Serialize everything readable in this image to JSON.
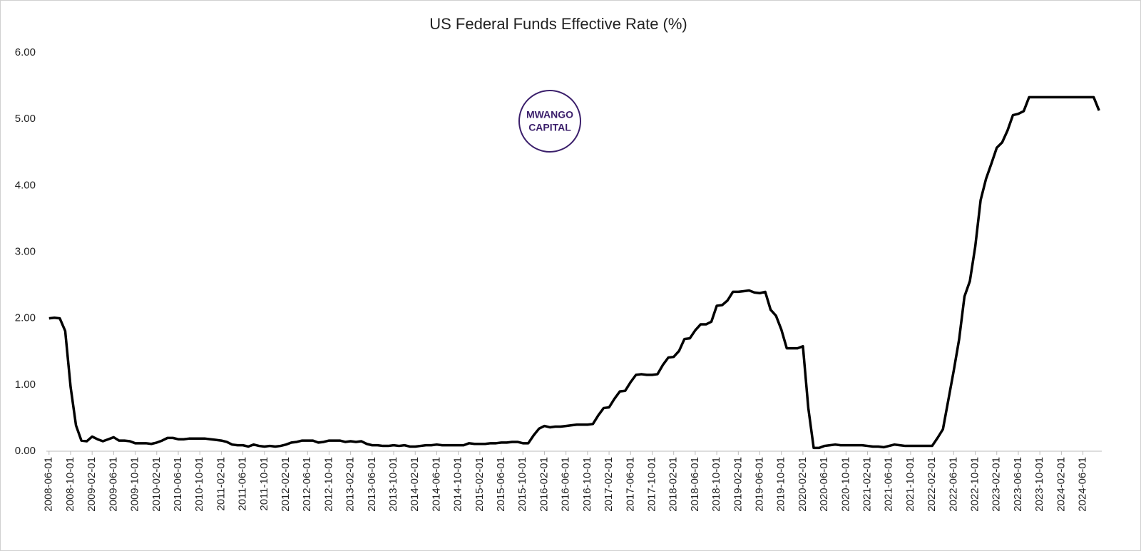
{
  "chart_data": {
    "type": "line",
    "title": "US Federal Funds Effective Rate (%)",
    "logo": [
      "MWANGO",
      "CAPITAL"
    ],
    "categories": [
      "2008-06-01",
      null,
      null,
      null,
      "2008-10-01",
      null,
      null,
      null,
      "2009-02-01",
      null,
      null,
      null,
      "2009-06-01",
      null,
      null,
      null,
      "2009-10-01",
      null,
      null,
      null,
      "2010-02-01",
      null,
      null,
      null,
      "2010-06-01",
      null,
      null,
      null,
      "2010-10-01",
      null,
      null,
      null,
      "2011-02-01",
      null,
      null,
      null,
      "2011-06-01",
      null,
      null,
      null,
      "2011-10-01",
      null,
      null,
      null,
      "2012-02-01",
      null,
      null,
      null,
      "2012-06-01",
      null,
      null,
      null,
      "2012-10-01",
      null,
      null,
      null,
      "2013-02-01",
      null,
      null,
      null,
      "2013-06-01",
      null,
      null,
      null,
      "2013-10-01",
      null,
      null,
      null,
      "2014-02-01",
      null,
      null,
      null,
      "2014-06-01",
      null,
      null,
      null,
      "2014-10-01",
      null,
      null,
      null,
      "2015-02-01",
      null,
      null,
      null,
      "2015-06-01",
      null,
      null,
      null,
      "2015-10-01",
      null,
      null,
      null,
      "2016-02-01",
      null,
      null,
      null,
      "2016-06-01",
      null,
      null,
      null,
      "2016-10-01",
      null,
      null,
      null,
      "2017-02-01",
      null,
      null,
      null,
      "2017-06-01",
      null,
      null,
      null,
      "2017-10-01",
      null,
      null,
      null,
      "2018-02-01",
      null,
      null,
      null,
      "2018-06-01",
      null,
      null,
      null,
      "2018-10-01",
      null,
      null,
      null,
      "2019-02-01",
      null,
      null,
      null,
      "2019-06-01",
      null,
      null,
      null,
      "2019-10-01",
      null,
      null,
      null,
      "2020-02-01",
      null,
      null,
      null,
      "2020-06-01",
      null,
      null,
      null,
      "2020-10-01",
      null,
      null,
      null,
      "2021-02-01",
      null,
      null,
      null,
      "2021-06-01",
      null,
      null,
      null,
      "2021-10-01",
      null,
      null,
      null,
      "2022-02-01",
      null,
      null,
      null,
      "2022-06-01",
      null,
      null,
      null,
      "2022-10-01",
      null,
      null,
      null,
      "2023-02-01",
      null,
      null,
      null,
      "2023-06-01",
      null,
      null,
      null,
      "2023-10-01",
      null,
      null,
      null,
      "2024-02-01",
      null,
      null,
      null,
      "2024-06-01",
      null,
      null,
      null
    ],
    "series": [
      {
        "color": "#000000",
        "values": [
          2.0,
          2.01,
          2.0,
          1.81,
          0.97,
          0.39,
          0.16,
          0.15,
          0.22,
          0.18,
          0.15,
          0.18,
          0.21,
          0.16,
          0.16,
          0.15,
          0.12,
          0.12,
          0.12,
          0.11,
          0.13,
          0.16,
          0.2,
          0.2,
          0.18,
          0.18,
          0.19,
          0.19,
          0.19,
          0.19,
          0.18,
          0.17,
          0.16,
          0.14,
          0.1,
          0.09,
          0.09,
          0.07,
          0.1,
          0.08,
          0.07,
          0.08,
          0.07,
          0.08,
          0.1,
          0.13,
          0.14,
          0.16,
          0.16,
          0.16,
          0.13,
          0.14,
          0.16,
          0.16,
          0.16,
          0.14,
          0.15,
          0.14,
          0.15,
          0.11,
          0.09,
          0.09,
          0.08,
          0.08,
          0.09,
          0.08,
          0.09,
          0.07,
          0.07,
          0.08,
          0.09,
          0.09,
          0.1,
          0.09,
          0.09,
          0.09,
          0.09,
          0.09,
          0.12,
          0.11,
          0.11,
          0.11,
          0.12,
          0.12,
          0.13,
          0.13,
          0.14,
          0.14,
          0.12,
          0.12,
          0.24,
          0.34,
          0.38,
          0.36,
          0.37,
          0.37,
          0.38,
          0.39,
          0.4,
          0.4,
          0.4,
          0.41,
          0.54,
          0.65,
          0.66,
          0.79,
          0.9,
          0.91,
          1.04,
          1.15,
          1.16,
          1.15,
          1.15,
          1.16,
          1.3,
          1.41,
          1.42,
          1.51,
          1.69,
          1.7,
          1.82,
          1.91,
          1.91,
          1.95,
          2.19,
          2.2,
          2.27,
          2.4,
          2.4,
          2.41,
          2.42,
          2.39,
          2.38,
          2.4,
          2.13,
          2.04,
          1.83,
          1.55,
          1.55,
          1.55,
          1.58,
          0.65,
          0.05,
          0.05,
          0.08,
          0.09,
          0.1,
          0.09,
          0.09,
          0.09,
          0.09,
          0.09,
          0.08,
          0.07,
          0.07,
          0.06,
          0.08,
          0.1,
          0.09,
          0.08,
          0.08,
          0.08,
          0.08,
          0.08,
          0.08,
          0.2,
          0.33,
          0.77,
          1.21,
          1.68,
          2.33,
          2.56,
          3.08,
          3.78,
          4.1,
          4.33,
          4.57,
          4.65,
          4.83,
          5.06,
          5.08,
          5.12,
          5.33,
          5.33,
          5.33,
          5.33,
          5.33,
          5.33,
          5.33,
          5.33,
          5.33,
          5.33,
          5.33,
          5.33,
          5.33,
          5.13
        ]
      }
    ],
    "ylim": [
      0,
      6
    ],
    "yticks": [
      {
        "value": 0,
        "label": "0.00"
      },
      {
        "value": 1,
        "label": "1.00"
      },
      {
        "value": 2,
        "label": "2.00"
      },
      {
        "value": 3,
        "label": "3.00"
      },
      {
        "value": 4,
        "label": "4.00"
      },
      {
        "value": 5,
        "label": "5.00"
      },
      {
        "value": 6,
        "label": "6.00"
      }
    ],
    "grid": false
  }
}
